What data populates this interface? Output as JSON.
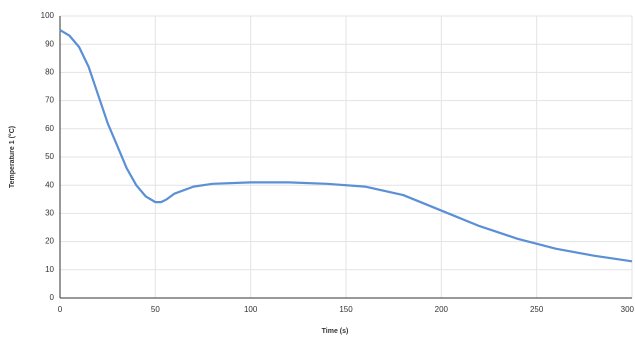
{
  "chart_data": {
    "type": "line",
    "x_label": "Time (s)",
    "y_label": "Temperature 1 (°C)",
    "x": [
      0,
      5,
      10,
      15,
      20,
      25,
      30,
      35,
      40,
      45,
      50,
      53,
      56,
      60,
      70,
      80,
      100,
      120,
      140,
      160,
      180,
      200,
      220,
      240,
      260,
      280,
      300
    ],
    "series": [
      {
        "name": "Temperature 1",
        "color": "#5b8fd6",
        "values": [
          95,
          93,
          89,
          82,
          72,
          62,
          54,
          46,
          40,
          36,
          34,
          34,
          35,
          37,
          39.5,
          40.5,
          41,
          41,
          40.5,
          39.5,
          36.5,
          31,
          25.5,
          21,
          17.5,
          15,
          13
        ]
      }
    ],
    "xlim": [
      0,
      300
    ],
    "xticks": [
      0,
      50,
      100,
      150,
      200,
      250,
      300
    ],
    "ylim": [
      0,
      100
    ],
    "yticks": [
      0,
      10,
      20,
      30,
      40,
      50,
      60,
      70,
      80,
      90,
      100
    ],
    "grid": true
  }
}
